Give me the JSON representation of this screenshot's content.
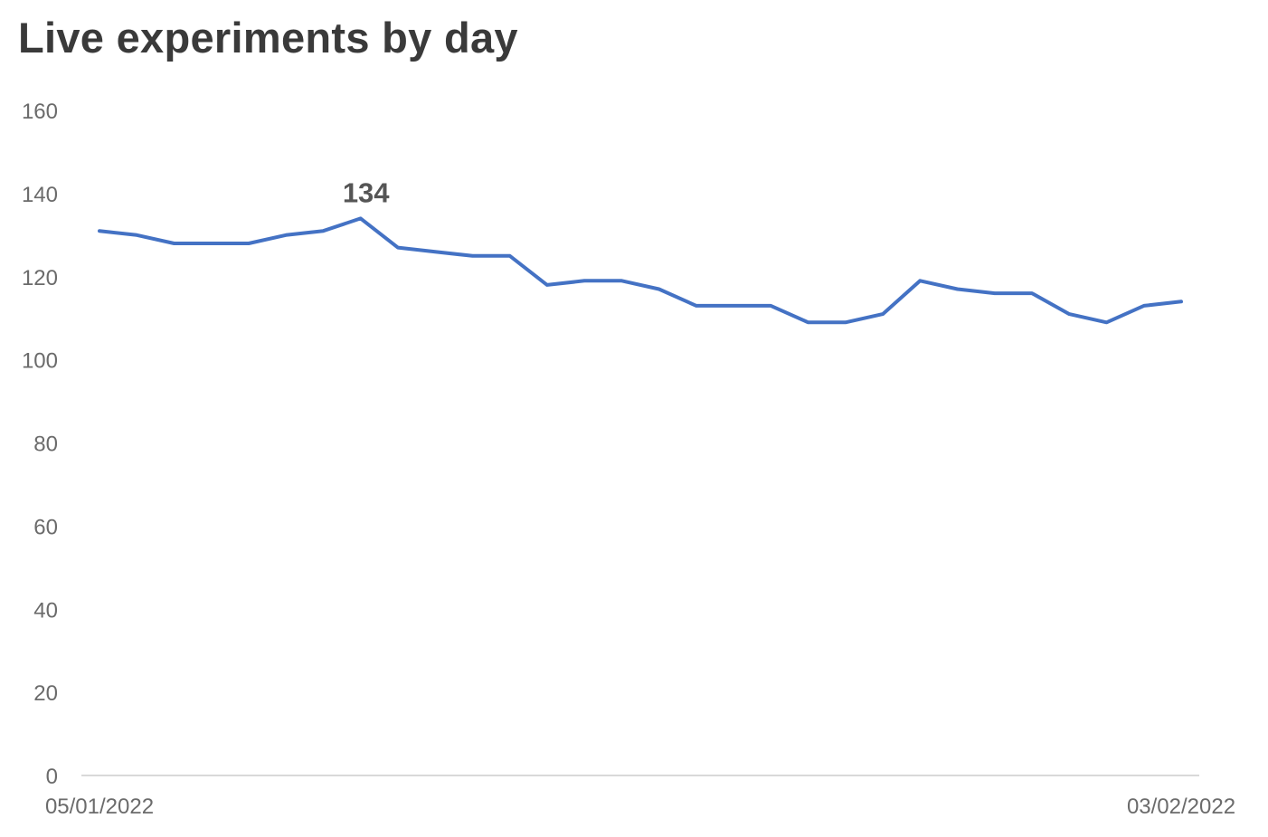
{
  "chart_data": {
    "type": "line",
    "title": "Live experiments by day",
    "xlabel": "",
    "ylabel": "",
    "ylim": [
      0,
      160
    ],
    "yticks": [
      "0",
      "20",
      "40",
      "60",
      "80",
      "100",
      "120",
      "140",
      "160"
    ],
    "x_tick_labels": [
      {
        "index": 0,
        "label": "05/01/2022"
      },
      {
        "index": 29,
        "label": "03/02/2022"
      }
    ],
    "grid": false,
    "legend": "none",
    "series": [
      {
        "color": "#4472c4",
        "values": [
          131,
          130,
          128,
          128,
          128,
          130,
          131,
          134,
          127,
          126,
          125,
          125,
          118,
          119,
          119,
          117,
          113,
          113,
          113,
          109,
          109,
          111,
          119,
          117,
          116,
          116,
          111,
          109,
          113,
          114
        ]
      }
    ],
    "annotations": [
      {
        "index": 7,
        "value": 134,
        "text": "134"
      }
    ]
  }
}
